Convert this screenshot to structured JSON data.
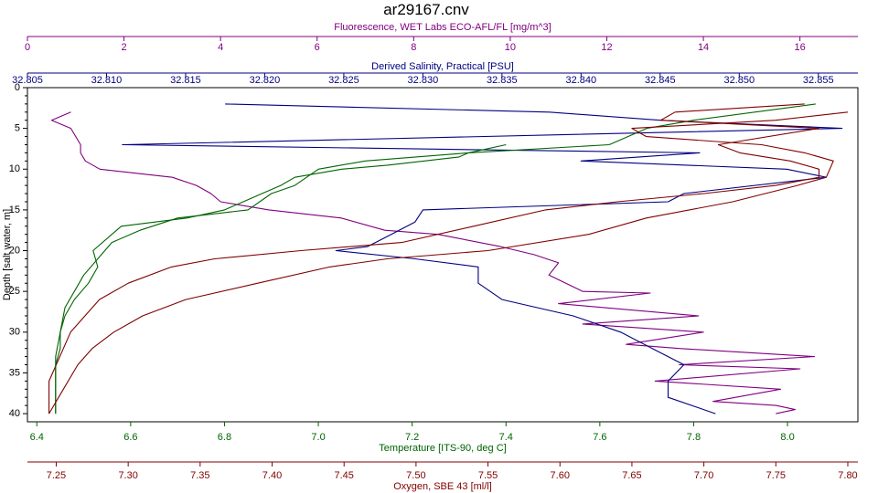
{
  "chart_data": {
    "type": "line",
    "title": "ar29167.cnv",
    "y_axis": {
      "label": "Depth [salt water, m]",
      "range": [
        0,
        41
      ],
      "ticks": [
        0,
        5,
        10,
        15,
        20,
        25,
        30,
        35,
        40
      ],
      "inverted": true
    },
    "grid": false,
    "legend": "none",
    "x_axes": [
      {
        "key": "fluorescence",
        "label": "Fluorescence, WET Labs ECO-AFL/FL [mg/m^3]",
        "position": "top",
        "color": "#800080",
        "range": [
          0,
          17.2
        ],
        "ticks": [
          0,
          2,
          4,
          6,
          8,
          10,
          12,
          14,
          16
        ]
      },
      {
        "key": "salinity",
        "label": "Derived Salinity, Practical [PSU]",
        "position": "top",
        "color": "#000080",
        "range": [
          32.805,
          32.8575
        ],
        "ticks": [
          32.805,
          32.81,
          32.815,
          32.82,
          32.825,
          32.83,
          32.835,
          32.84,
          32.845,
          32.85,
          32.855
        ],
        "tick_labels": [
          "32.805",
          "32.810",
          "32.815",
          "32.820",
          "32.825",
          "32.830",
          "32.835",
          "32.840",
          "32.845",
          "32.850",
          "32.855"
        ]
      },
      {
        "key": "temperature",
        "label": "Temperature [ITS-90, deg C]",
        "position": "bottom",
        "color": "#006400",
        "range": [
          6.38,
          8.15
        ],
        "ticks": [
          6.4,
          6.6,
          6.8,
          7.0,
          7.2,
          7.4,
          7.6,
          7.8,
          8.0
        ],
        "tick_labels": [
          "6.4",
          "6.6",
          "6.8",
          "7.0",
          "7.2",
          "7.4",
          "7.6",
          "7.8",
          "8.0"
        ]
      },
      {
        "key": "oxygen",
        "label": "Oxygen, SBE 43 [ml/l]",
        "position": "bottom",
        "color": "#800000",
        "range": [
          7.23,
          7.807
        ],
        "ticks": [
          7.25,
          7.3,
          7.35,
          7.4,
          7.45,
          7.5,
          7.55,
          7.6,
          7.65,
          7.7,
          7.75,
          7.8
        ],
        "tick_labels": [
          "7.25",
          "7.30",
          "7.35",
          "7.40",
          "7.45",
          "7.50",
          "7.55",
          "7.60",
          "7.65",
          "7.70",
          "7.75",
          "7.80"
        ]
      }
    ],
    "series": [
      {
        "axis": "fluorescence",
        "color": "#800080",
        "points": [
          [
            0.9,
            3
          ],
          [
            0.5,
            4
          ],
          [
            0.9,
            5
          ],
          [
            1.1,
            7
          ],
          [
            1.1,
            8
          ],
          [
            1.2,
            9
          ],
          [
            1.5,
            10
          ],
          [
            3.0,
            11
          ],
          [
            3.5,
            12
          ],
          [
            3.8,
            13
          ],
          [
            4.0,
            14
          ],
          [
            5.0,
            15
          ],
          [
            6.5,
            16
          ],
          [
            7.4,
            17.5
          ],
          [
            8.5,
            18
          ],
          [
            9.8,
            19.5
          ],
          [
            10.5,
            20.5
          ],
          [
            11.0,
            21.5
          ],
          [
            10.8,
            23
          ],
          [
            11.5,
            25
          ],
          [
            12.9,
            25.2
          ],
          [
            11.0,
            26.5
          ],
          [
            13.9,
            28
          ],
          [
            11.5,
            29
          ],
          [
            14.0,
            30
          ],
          [
            12.4,
            31.5
          ],
          [
            13.5,
            32
          ],
          [
            16.3,
            33
          ],
          [
            13.5,
            34
          ],
          [
            16.0,
            34.5
          ],
          [
            13.0,
            36
          ],
          [
            15.6,
            37
          ],
          [
            14.2,
            38.5
          ],
          [
            15.5,
            39
          ],
          [
            15.9,
            39.5
          ],
          [
            15.5,
            40
          ]
        ]
      },
      {
        "axis": "salinity",
        "color": "#000080",
        "points": [
          [
            32.8175,
            2
          ],
          [
            32.838,
            3
          ],
          [
            32.845,
            4
          ],
          [
            32.8565,
            5
          ],
          [
            32.811,
            7
          ],
          [
            32.8475,
            8
          ],
          [
            32.84,
            9
          ],
          [
            32.853,
            10
          ],
          [
            32.8555,
            11
          ],
          [
            32.8465,
            13
          ],
          [
            32.8455,
            14
          ],
          [
            32.83,
            15
          ],
          [
            32.8295,
            16.5
          ],
          [
            32.828,
            18
          ],
          [
            32.8265,
            19.5
          ],
          [
            32.8245,
            20
          ],
          [
            32.8295,
            21
          ],
          [
            32.8335,
            22
          ],
          [
            32.8335,
            24
          ],
          [
            32.835,
            26
          ],
          [
            32.8395,
            28
          ],
          [
            32.8425,
            30
          ],
          [
            32.8445,
            32
          ],
          [
            32.8465,
            34
          ],
          [
            32.8455,
            36
          ],
          [
            32.8455,
            38
          ],
          [
            32.8485,
            40
          ]
        ]
      },
      {
        "axis": "temperature",
        "color": "#006400",
        "points": [
          [
            8.06,
            2
          ],
          [
            7.8,
            4
          ],
          [
            7.7,
            5
          ],
          [
            7.62,
            7
          ],
          [
            7.32,
            8
          ],
          [
            7.3,
            8.5
          ],
          [
            7.15,
            9.5
          ],
          [
            7.05,
            10
          ],
          [
            6.95,
            11
          ],
          [
            6.92,
            12
          ],
          [
            6.88,
            13
          ],
          [
            6.84,
            14
          ],
          [
            6.8,
            15
          ],
          [
            6.72,
            16
          ],
          [
            6.58,
            17
          ],
          [
            6.56,
            18
          ],
          [
            6.52,
            20
          ],
          [
            6.53,
            22
          ],
          [
            6.51,
            24
          ],
          [
            6.48,
            26
          ],
          [
            6.46,
            28
          ],
          [
            6.45,
            30
          ],
          [
            6.45,
            32
          ],
          [
            6.44,
            34
          ],
          [
            6.44,
            36
          ],
          [
            6.44,
            38
          ],
          [
            6.44,
            40
          ]
        ]
      },
      {
        "axis": "oxygen",
        "color": "#800000",
        "points": [
          [
            7.77,
            2
          ],
          [
            7.68,
            3
          ],
          [
            7.67,
            4
          ],
          [
            7.78,
            5
          ],
          [
            7.71,
            7
          ],
          [
            7.725,
            8
          ],
          [
            7.76,
            9
          ],
          [
            7.78,
            10
          ],
          [
            7.78,
            11
          ],
          [
            7.75,
            12
          ],
          [
            7.7,
            13
          ],
          [
            7.64,
            14
          ],
          [
            7.59,
            15
          ],
          [
            7.54,
            17
          ],
          [
            7.49,
            19
          ],
          [
            7.42,
            20
          ],
          [
            7.36,
            21
          ],
          [
            7.33,
            22
          ],
          [
            7.3,
            24
          ],
          [
            7.28,
            26
          ],
          [
            7.27,
            28
          ],
          [
            7.26,
            30
          ],
          [
            7.255,
            32
          ],
          [
            7.25,
            34
          ],
          [
            7.245,
            36
          ],
          [
            7.245,
            38
          ],
          [
            7.245,
            40
          ]
        ]
      },
      {
        "axis": "temperature",
        "color": "#006400",
        "points": [
          [
            7.4,
            7
          ],
          [
            7.32,
            8
          ],
          [
            7.1,
            9
          ],
          [
            7.0,
            10
          ],
          [
            6.95,
            12
          ],
          [
            6.9,
            13
          ],
          [
            6.85,
            15
          ],
          [
            6.7,
            16
          ],
          [
            6.62,
            17.5
          ],
          [
            6.56,
            19
          ],
          [
            6.53,
            21
          ],
          [
            6.5,
            23
          ],
          [
            6.48,
            25
          ],
          [
            6.46,
            27
          ],
          [
            6.45,
            30
          ],
          [
            6.44,
            33
          ],
          [
            6.44,
            36
          ],
          [
            6.44,
            40
          ]
        ]
      },
      {
        "axis": "oxygen",
        "color": "#800000",
        "points": [
          [
            7.8,
            3
          ],
          [
            7.75,
            4
          ],
          [
            7.65,
            5
          ],
          [
            7.66,
            6
          ],
          [
            7.74,
            7
          ],
          [
            7.77,
            8
          ],
          [
            7.79,
            9
          ],
          [
            7.785,
            11
          ],
          [
            7.765,
            12
          ],
          [
            7.72,
            14
          ],
          [
            7.66,
            16
          ],
          [
            7.62,
            18
          ],
          [
            7.55,
            20
          ],
          [
            7.48,
            21
          ],
          [
            7.44,
            22
          ],
          [
            7.39,
            24
          ],
          [
            7.34,
            26
          ],
          [
            7.31,
            28
          ],
          [
            7.29,
            30
          ],
          [
            7.275,
            32
          ],
          [
            7.265,
            34
          ],
          [
            7.255,
            37
          ],
          [
            7.245,
            40
          ]
        ]
      }
    ]
  }
}
